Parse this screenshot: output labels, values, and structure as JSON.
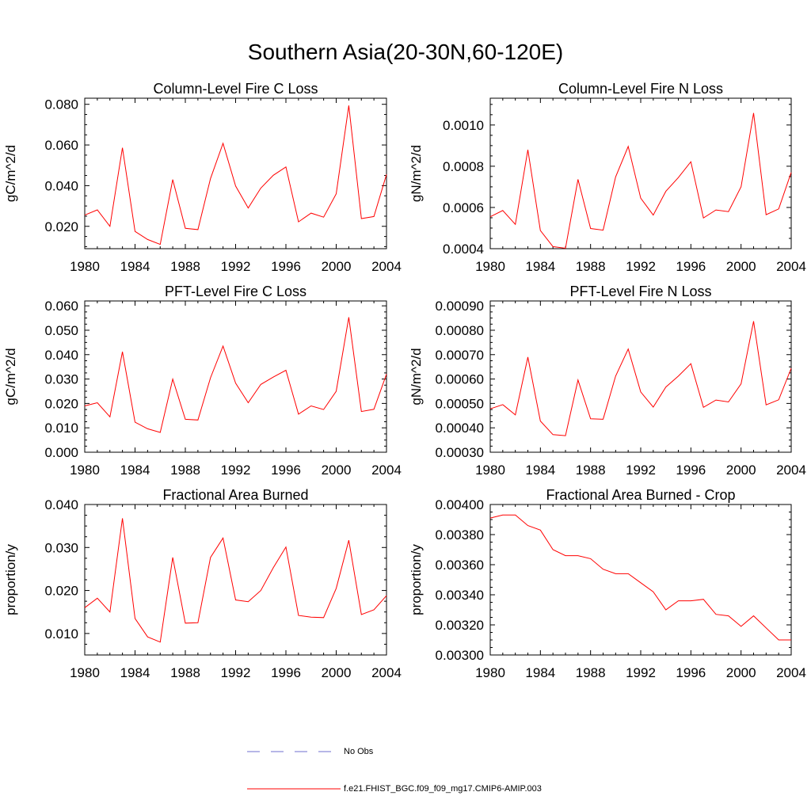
{
  "title": "Southern Asia(20-30N,60-120E)",
  "legend": {
    "obs_label": "No Obs",
    "obs_color": "#6f6fcf",
    "model_label": "f.e21.FHIST_BGC.f09_f09_mg17.CMIP6-AMIP.003",
    "model_color": "#ff0000"
  },
  "chart_data": [
    {
      "type": "line",
      "title": "Column-Level Fire C Loss",
      "ylabel": "gC/m^2/d",
      "xlim": [
        1980,
        2004
      ],
      "ylim": [
        0.009,
        0.083
      ],
      "xticks": [
        "1980",
        "1984",
        "1988",
        "1992",
        "1996",
        "2000",
        "2004"
      ],
      "yticks": [
        "0.020",
        "0.040",
        "0.060",
        "0.080"
      ],
      "series": [
        {
          "x": [
            1980,
            1981,
            1982,
            1983,
            1984,
            1985,
            1986,
            1987,
            1988,
            1989,
            1990,
            1991,
            1992,
            1993,
            1994,
            1995,
            1996,
            1997,
            1998,
            1999,
            2000,
            2001,
            2002,
            2003,
            2004
          ],
          "values": [
            0.0255,
            0.0281,
            0.02,
            0.0586,
            0.0175,
            0.0135,
            0.0111,
            0.043,
            0.019,
            0.0184,
            0.0435,
            0.0608,
            0.0398,
            0.029,
            0.0388,
            0.0451,
            0.0492,
            0.0222,
            0.0265,
            0.0245,
            0.036,
            0.0794,
            0.0238,
            0.0248,
            0.0455
          ]
        }
      ]
    },
    {
      "type": "line",
      "title": "Column-Level Fire N Loss",
      "ylabel": "gN/m^2/d",
      "xlim": [
        1980,
        2004
      ],
      "ylim": [
        0.0004,
        0.00113
      ],
      "xticks": [
        "1980",
        "1984",
        "1988",
        "1992",
        "1996",
        "2000",
        "2004"
      ],
      "yticks": [
        "0.0004",
        "0.0006",
        "0.0008",
        "0.0010"
      ],
      "series": [
        {
          "x": [
            1980,
            1981,
            1982,
            1983,
            1984,
            1985,
            1986,
            1987,
            1988,
            1989,
            1990,
            1991,
            1992,
            1993,
            1994,
            1995,
            1996,
            1997,
            1998,
            1999,
            2000,
            2001,
            2002,
            2003,
            2004
          ],
          "values": [
            0.000555,
            0.000585,
            0.000518,
            0.00088,
            0.000488,
            0.00041,
            0.000402,
            0.000736,
            0.000498,
            0.00049,
            0.000748,
            0.000896,
            0.000645,
            0.000563,
            0.000678,
            0.000745,
            0.000822,
            0.000549,
            0.000588,
            0.00058,
            0.0007,
            0.001058,
            0.000565,
            0.000593,
            0.00077
          ]
        }
      ]
    },
    {
      "type": "line",
      "title": "PFT-Level Fire C Loss",
      "ylabel": "gC/m^2/d",
      "xlim": [
        1980,
        2004
      ],
      "ylim": [
        0.0,
        0.062
      ],
      "xticks": [
        "1980",
        "1984",
        "1988",
        "1992",
        "1996",
        "2000",
        "2004"
      ],
      "yticks": [
        "0.000",
        "0.010",
        "0.020",
        "0.030",
        "0.040",
        "0.050",
        "0.060"
      ],
      "series": [
        {
          "x": [
            1980,
            1981,
            1982,
            1983,
            1984,
            1985,
            1986,
            1987,
            1988,
            1989,
            1990,
            1991,
            1992,
            1993,
            1994,
            1995,
            1996,
            1997,
            1998,
            1999,
            2000,
            2001,
            2002,
            2003,
            2004
          ],
          "values": [
            0.019,
            0.0203,
            0.0145,
            0.0412,
            0.0123,
            0.0096,
            0.0081,
            0.03,
            0.0135,
            0.0132,
            0.0305,
            0.0435,
            0.0283,
            0.0203,
            0.0278,
            0.0308,
            0.0336,
            0.0156,
            0.019,
            0.0175,
            0.025,
            0.0553,
            0.0167,
            0.0176,
            0.032
          ]
        }
      ]
    },
    {
      "type": "line",
      "title": "PFT-Level Fire N Loss",
      "ylabel": "gN/m^2/d",
      "xlim": [
        1980,
        2004
      ],
      "ylim": [
        0.0003,
        0.00092
      ],
      "xticks": [
        "1980",
        "1984",
        "1988",
        "1992",
        "1996",
        "2000",
        "2004"
      ],
      "yticks": [
        "0.00030",
        "0.00040",
        "0.00050",
        "0.00060",
        "0.00070",
        "0.00080",
        "0.00090"
      ],
      "series": [
        {
          "x": [
            1980,
            1981,
            1982,
            1983,
            1984,
            1985,
            1986,
            1987,
            1988,
            1989,
            1990,
            1991,
            1992,
            1993,
            1994,
            1995,
            1996,
            1997,
            1998,
            1999,
            2000,
            2001,
            2002,
            2003,
            2004
          ],
          "values": [
            0.000478,
            0.000495,
            0.000453,
            0.00069,
            0.000428,
            0.000372,
            0.000368,
            0.000596,
            0.000437,
            0.000435,
            0.000612,
            0.000723,
            0.000547,
            0.000485,
            0.000567,
            0.000612,
            0.000663,
            0.000484,
            0.000514,
            0.000506,
            0.00058,
            0.000837,
            0.000494,
            0.000515,
            0.000644
          ]
        }
      ]
    },
    {
      "type": "line",
      "title": "Fractional Area Burned",
      "ylabel": "proportion/y",
      "xlim": [
        1980,
        2004
      ],
      "ylim": [
        0.005,
        0.04
      ],
      "xticks": [
        "1980",
        "1984",
        "1988",
        "1992",
        "1996",
        "2000",
        "2004"
      ],
      "yticks": [
        "0.010",
        "0.020",
        "0.030",
        "0.040"
      ],
      "series": [
        {
          "x": [
            1980,
            1981,
            1982,
            1983,
            1984,
            1985,
            1986,
            1987,
            1988,
            1989,
            1990,
            1991,
            1992,
            1993,
            1994,
            1995,
            1996,
            1997,
            1998,
            1999,
            2000,
            2001,
            2002,
            2003,
            2004
          ],
          "values": [
            0.016,
            0.0182,
            0.015,
            0.0368,
            0.0135,
            0.0092,
            0.008,
            0.0277,
            0.0124,
            0.0125,
            0.0277,
            0.0322,
            0.0178,
            0.0174,
            0.02,
            0.0253,
            0.0301,
            0.0142,
            0.0138,
            0.0137,
            0.0205,
            0.0317,
            0.0144,
            0.0155,
            0.0188
          ]
        }
      ]
    },
    {
      "type": "line",
      "title": "Fractional Area Burned - Crop",
      "ylabel": "proportion/y",
      "xlim": [
        1980,
        2004
      ],
      "ylim": [
        0.003,
        0.004
      ],
      "xticks": [
        "1980",
        "1984",
        "1988",
        "1992",
        "1996",
        "2000",
        "2004"
      ],
      "yticks": [
        "0.00300",
        "0.00320",
        "0.00340",
        "0.00360",
        "0.00380",
        "0.00400"
      ],
      "series": [
        {
          "x": [
            1980,
            1981,
            1982,
            1983,
            1984,
            1985,
            1986,
            1987,
            1988,
            1989,
            1990,
            1991,
            1992,
            1993,
            1994,
            1995,
            1996,
            1997,
            1998,
            1999,
            2000,
            2001,
            2002,
            2003,
            2004
          ],
          "values": [
            0.00391,
            0.00393,
            0.00393,
            0.00386,
            0.00383,
            0.0037,
            0.00366,
            0.00366,
            0.00364,
            0.00357,
            0.00354,
            0.00354,
            0.00348,
            0.00342,
            0.0033,
            0.00336,
            0.00336,
            0.00337,
            0.00327,
            0.00326,
            0.00319,
            0.00326,
            0.00318,
            0.0031,
            0.0031
          ]
        }
      ]
    }
  ]
}
